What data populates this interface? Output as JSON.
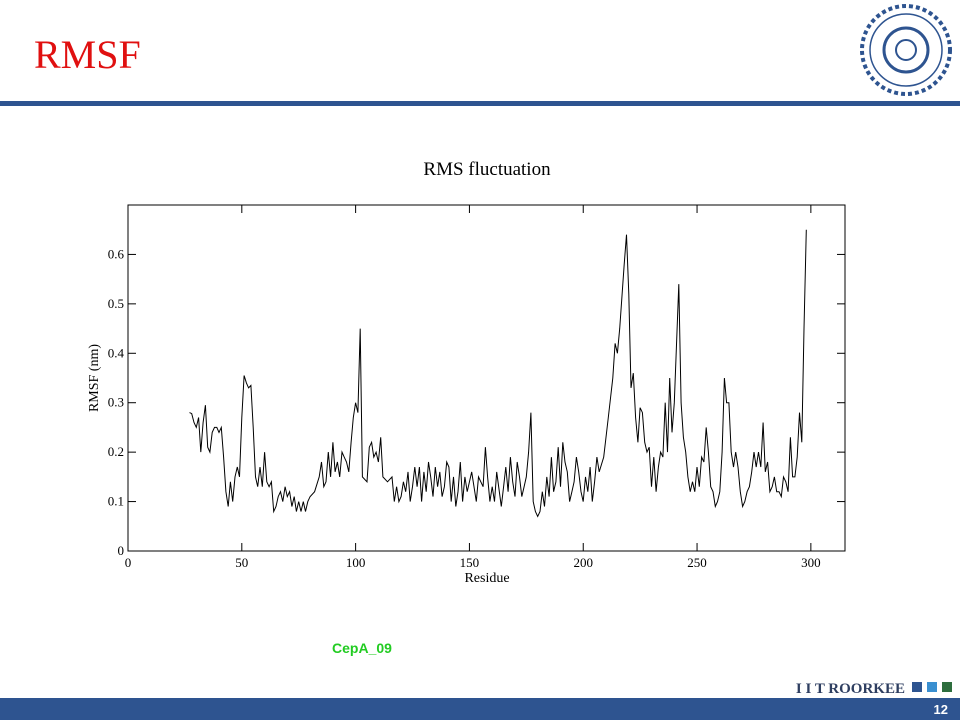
{
  "slide_title": "RMSF",
  "caption": "CepA_09",
  "footer": {
    "brand": "I I T ROORKEE",
    "page": "12"
  },
  "chart_data": {
    "type": "line",
    "title": "RMS fluctuation",
    "x_label": "Residue",
    "y_label": "RMSF (nm)",
    "color": "#000000",
    "xlim": [
      0,
      315
    ],
    "ylim": [
      0,
      0.7
    ],
    "xticks": [
      0,
      50,
      100,
      150,
      200,
      250,
      300
    ],
    "yticks": [
      0,
      0.1,
      0.2,
      0.3,
      0.4,
      0.5,
      0.6
    ],
    "x": [
      27,
      28,
      29,
      30,
      31,
      32,
      33,
      34,
      35,
      36,
      37,
      38,
      39,
      40,
      41,
      42,
      43,
      44,
      45,
      46,
      47,
      48,
      49,
      50,
      51,
      52,
      53,
      54,
      55,
      56,
      57,
      58,
      59,
      60,
      61,
      62,
      63,
      64,
      65,
      66,
      67,
      68,
      69,
      70,
      71,
      72,
      73,
      74,
      75,
      76,
      77,
      78,
      79,
      80,
      82,
      84,
      85,
      86,
      87,
      88,
      89,
      90,
      91,
      92,
      93,
      94,
      95,
      96,
      97,
      98,
      99,
      100,
      101,
      102,
      103,
      105,
      106,
      107,
      108,
      109,
      110,
      111,
      112,
      114,
      116,
      117,
      118,
      119,
      120,
      121,
      122,
      123,
      124,
      125,
      126,
      127,
      128,
      129,
      130,
      131,
      132,
      133,
      134,
      135,
      136,
      137,
      138,
      139,
      140,
      141,
      142,
      143,
      144,
      145,
      146,
      147,
      148,
      149,
      151,
      153,
      154,
      156,
      157,
      158,
      159,
      160,
      161,
      162,
      164,
      165,
      166,
      167,
      168,
      169,
      170,
      171,
      172,
      173,
      174,
      175,
      176,
      177,
      178,
      179,
      180,
      181,
      182,
      183,
      184,
      185,
      186,
      187,
      188,
      189,
      190,
      191,
      192,
      193,
      194,
      195,
      196,
      197,
      198,
      199,
      200,
      201,
      202,
      203,
      204,
      205,
      206,
      207,
      209,
      211,
      213,
      214,
      215,
      216,
      218,
      219,
      220,
      221,
      222,
      223,
      224,
      225,
      226,
      227,
      228,
      229,
      230,
      231,
      232,
      233,
      234,
      235,
      236,
      237,
      238,
      239,
      240,
      242,
      243,
      244,
      245,
      246,
      247,
      248,
      249,
      250,
      251,
      252,
      253,
      254,
      255,
      256,
      257,
      258,
      259,
      260,
      261,
      262,
      263,
      264,
      265,
      266,
      267,
      268,
      269,
      270,
      271,
      272,
      273,
      274,
      275,
      276,
      277,
      278,
      279,
      280,
      281,
      282,
      283,
      284,
      285,
      286,
      287,
      288,
      289,
      290,
      291,
      292,
      293,
      294,
      295,
      296,
      297,
      298
    ],
    "values": [
      0.28,
      0.278,
      0.26,
      0.25,
      0.27,
      0.2,
      0.26,
      0.295,
      0.21,
      0.2,
      0.24,
      0.25,
      0.25,
      0.24,
      0.25,
      0.19,
      0.12,
      0.09,
      0.14,
      0.1,
      0.15,
      0.17,
      0.15,
      0.27,
      0.355,
      0.34,
      0.33,
      0.335,
      0.25,
      0.15,
      0.13,
      0.17,
      0.13,
      0.2,
      0.14,
      0.13,
      0.14,
      0.08,
      0.09,
      0.11,
      0.12,
      0.1,
      0.13,
      0.11,
      0.12,
      0.09,
      0.11,
      0.08,
      0.1,
      0.08,
      0.1,
      0.08,
      0.1,
      0.11,
      0.12,
      0.15,
      0.18,
      0.13,
      0.14,
      0.2,
      0.15,
      0.22,
      0.16,
      0.18,
      0.15,
      0.2,
      0.19,
      0.18,
      0.16,
      0.22,
      0.27,
      0.3,
      0.28,
      0.45,
      0.15,
      0.14,
      0.21,
      0.22,
      0.19,
      0.2,
      0.18,
      0.23,
      0.15,
      0.14,
      0.15,
      0.1,
      0.13,
      0.1,
      0.11,
      0.14,
      0.12,
      0.16,
      0.1,
      0.13,
      0.17,
      0.13,
      0.17,
      0.1,
      0.16,
      0.12,
      0.18,
      0.15,
      0.11,
      0.17,
      0.13,
      0.16,
      0.11,
      0.13,
      0.18,
      0.17,
      0.1,
      0.15,
      0.09,
      0.12,
      0.18,
      0.1,
      0.15,
      0.12,
      0.16,
      0.1,
      0.15,
      0.13,
      0.21,
      0.15,
      0.1,
      0.13,
      0.1,
      0.16,
      0.09,
      0.13,
      0.17,
      0.12,
      0.19,
      0.14,
      0.11,
      0.18,
      0.15,
      0.11,
      0.13,
      0.15,
      0.2,
      0.28,
      0.1,
      0.08,
      0.07,
      0.08,
      0.12,
      0.09,
      0.15,
      0.11,
      0.19,
      0.12,
      0.14,
      0.21,
      0.13,
      0.22,
      0.18,
      0.16,
      0.1,
      0.12,
      0.14,
      0.19,
      0.16,
      0.12,
      0.1,
      0.15,
      0.12,
      0.17,
      0.1,
      0.14,
      0.19,
      0.16,
      0.19,
      0.27,
      0.35,
      0.42,
      0.4,
      0.45,
      0.58,
      0.64,
      0.52,
      0.33,
      0.36,
      0.27,
      0.22,
      0.29,
      0.28,
      0.22,
      0.2,
      0.21,
      0.13,
      0.19,
      0.12,
      0.17,
      0.2,
      0.19,
      0.3,
      0.2,
      0.35,
      0.24,
      0.3,
      0.54,
      0.3,
      0.23,
      0.2,
      0.15,
      0.12,
      0.14,
      0.12,
      0.17,
      0.13,
      0.19,
      0.18,
      0.25,
      0.2,
      0.13,
      0.12,
      0.09,
      0.1,
      0.12,
      0.2,
      0.35,
      0.3,
      0.3,
      0.2,
      0.17,
      0.2,
      0.17,
      0.12,
      0.09,
      0.1,
      0.12,
      0.13,
      0.16,
      0.2,
      0.17,
      0.2,
      0.17,
      0.26,
      0.16,
      0.18,
      0.12,
      0.13,
      0.15,
      0.12,
      0.12,
      0.11,
      0.15,
      0.14,
      0.12,
      0.23,
      0.15,
      0.15,
      0.19,
      0.28,
      0.22,
      0.45,
      0.65
    ]
  }
}
